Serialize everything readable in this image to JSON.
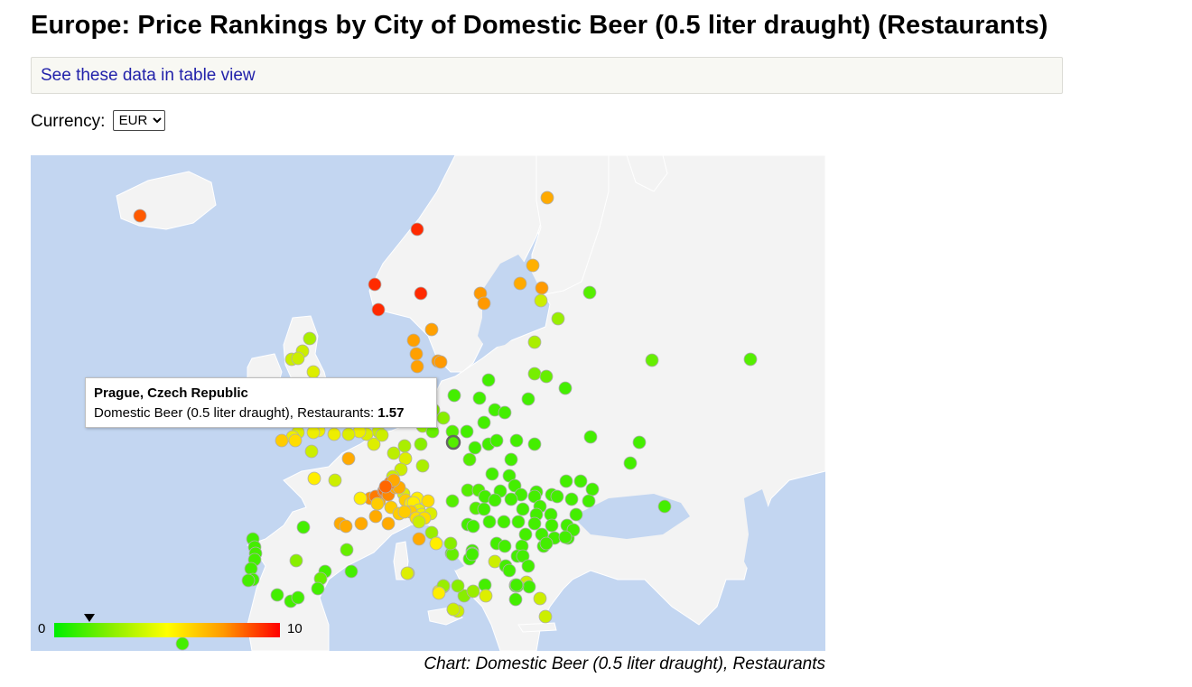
{
  "page": {
    "title": "Europe: Price Rankings by City of Domestic Beer (0.5 liter draught) (Restaurants)",
    "table_link": "See these data in table view",
    "currency_label": "Currency:",
    "currency_value": "EUR",
    "caption": "Chart: Domestic Beer (0.5 liter draught), Restaurants"
  },
  "tooltip": {
    "title": "Prague, Czech Republic",
    "label": "Domestic Beer (0.5 liter draught), Restaurants: ",
    "value": "1.57"
  },
  "legend": {
    "min": "0",
    "max": "10",
    "marker_value": 1.57,
    "colors": [
      "#00ee00",
      "#88ee00",
      "#ffff00",
      "#ff9900",
      "#ff0000"
    ]
  },
  "colors": {
    "sea": "#c3d6f1",
    "land": "#f3f3f3",
    "border": "#ffffff",
    "link": "#2222aa"
  }
}
